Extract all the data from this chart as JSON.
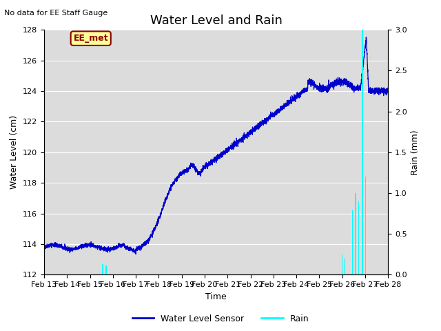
{
  "title": "Water Level and Rain",
  "top_left_text": "No data for EE Staff Gauge",
  "xlabel": "Time",
  "ylabel_left": "Water Level (cm)",
  "ylabel_right": "Rain (mm)",
  "legend_label_water": "Water Level Sensor",
  "legend_label_rain": "Rain",
  "annotation_label": "EE_met",
  "water_color": "#0000cc",
  "rain_color": "#00ffff",
  "background_color": "#dcdcdc",
  "ylim_water": [
    112,
    128
  ],
  "ylim_rain": [
    0.0,
    3.0
  ],
  "yticks_water": [
    112,
    114,
    116,
    118,
    120,
    122,
    124,
    126,
    128
  ],
  "yticks_rain": [
    0.0,
    0.5,
    1.0,
    1.5,
    2.0,
    2.5,
    3.0
  ],
  "xtick_labels": [
    "Feb 13",
    "Feb 14",
    "Feb 15",
    "Feb 16",
    "Feb 17",
    "Feb 18",
    "Feb 19",
    "Feb 20",
    "Feb 21",
    "Feb 22",
    "Feb 23",
    "Feb 24",
    "Feb 25",
    "Feb 26",
    "Feb 27",
    "Feb 28"
  ],
  "title_fontsize": 13,
  "label_fontsize": 9,
  "tick_fontsize": 8,
  "annot_fontsize": 9
}
